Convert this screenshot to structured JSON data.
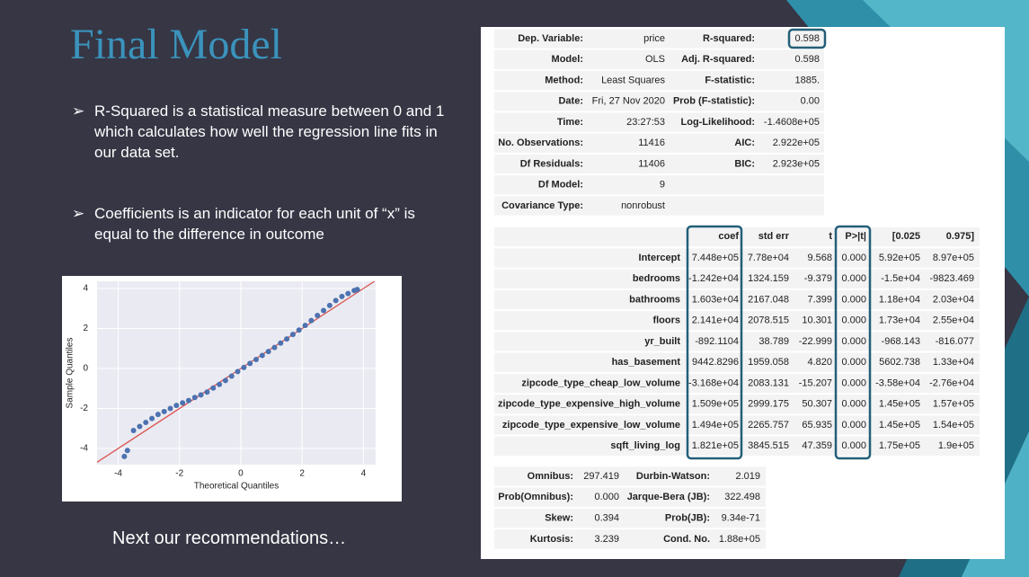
{
  "slide": {
    "title": "Final Model",
    "bullets": [
      "R-Squared is a statistical measure between 0 and 1 which calculates how well the regression line fits in our data set.",
      "Coefficients is an indicator for each unit of “x” is equal to the difference in outcome"
    ],
    "footer": "Next our recommendations…"
  },
  "qq_plot": {
    "type": "scatter",
    "x_label": "Theoretical Quantiles",
    "y_label": "Sample Quantiles",
    "xlim": [
      -4.69,
      4.4
    ],
    "ylim": [
      -4.81,
      4.36
    ],
    "xticks": [
      -4,
      -2,
      0,
      2,
      4
    ],
    "yticks": [
      -4,
      -2,
      0,
      2,
      4
    ],
    "grid": true,
    "color": "#4c72b0",
    "line_color": "#d9534f",
    "x": [
      -3.8,
      -3.7,
      -3.5,
      -3.3,
      -3.1,
      -2.9,
      -2.7,
      -2.5,
      -2.3,
      -2.1,
      -1.9,
      -1.7,
      -1.5,
      -1.3,
      -1.1,
      -0.9,
      -0.7,
      -0.5,
      -0.3,
      -0.1,
      0.1,
      0.3,
      0.5,
      0.7,
      0.9,
      1.1,
      1.3,
      1.5,
      1.7,
      1.9,
      2.1,
      2.3,
      2.5,
      2.7,
      2.9,
      3.1,
      3.3,
      3.5,
      3.7,
      3.8
    ],
    "y": [
      -4.4,
      -4.1,
      -3.1,
      -2.9,
      -2.7,
      -2.5,
      -2.3,
      -2.15,
      -2.0,
      -1.85,
      -1.72,
      -1.6,
      -1.45,
      -1.32,
      -1.18,
      -0.98,
      -0.8,
      -0.6,
      -0.38,
      -0.15,
      0.05,
      0.25,
      0.45,
      0.65,
      0.85,
      1.05,
      1.27,
      1.48,
      1.7,
      1.92,
      2.15,
      2.4,
      2.65,
      2.9,
      3.15,
      3.4,
      3.6,
      3.75,
      3.9,
      3.95
    ]
  },
  "summary": {
    "rows": [
      [
        "Dep. Variable:",
        "price",
        "R-squared:",
        "0.598"
      ],
      [
        "Model:",
        "OLS",
        "Adj. R-squared:",
        "0.598"
      ],
      [
        "Method:",
        "Least Squares",
        "F-statistic:",
        "1885."
      ],
      [
        "Date:",
        "Fri, 27 Nov 2020",
        "Prob (F-statistic):",
        "0.00"
      ],
      [
        "Time:",
        "23:27:53",
        "Log-Likelihood:",
        "-1.4608e+05"
      ],
      [
        "No. Observations:",
        "11416",
        "AIC:",
        "2.922e+05"
      ],
      [
        "Df Residuals:",
        "11406",
        "BIC:",
        "2.923e+05"
      ],
      [
        "Df Model:",
        "9"
      ],
      [
        "Covariance Type:",
        "nonrobust"
      ]
    ]
  },
  "coefficients": {
    "header": [
      "coef",
      "std err",
      "t",
      "P>|t|",
      "[0.025",
      "0.975]"
    ],
    "rows": [
      [
        "Intercept",
        "7.448e+05",
        "7.78e+04",
        "9.568",
        "0.000",
        "5.92e+05",
        "8.97e+05"
      ],
      [
        "bedrooms",
        "-1.242e+04",
        "1324.159",
        "-9.379",
        "0.000",
        "-1.5e+04",
        "-9823.469"
      ],
      [
        "bathrooms",
        "1.603e+04",
        "2167.048",
        "7.399",
        "0.000",
        "1.18e+04",
        "2.03e+04"
      ],
      [
        "floors",
        "2.141e+04",
        "2078.515",
        "10.301",
        "0.000",
        "1.73e+04",
        "2.55e+04"
      ],
      [
        "yr_built",
        "-892.1104",
        "38.789",
        "-22.999",
        "0.000",
        "-968.143",
        "-816.077"
      ],
      [
        "has_basement",
        "9442.8296",
        "1959.058",
        "4.820",
        "0.000",
        "5602.738",
        "1.33e+04"
      ],
      [
        "zipcode_type_cheap_low_volume",
        "-3.168e+04",
        "2083.131",
        "-15.207",
        "0.000",
        "-3.58e+04",
        "-2.76e+04"
      ],
      [
        "zipcode_type_expensive_high_volume",
        "1.509e+05",
        "2999.175",
        "50.307",
        "0.000",
        "1.45e+05",
        "1.57e+05"
      ],
      [
        "zipcode_type_expensive_low_volume",
        "1.494e+05",
        "2265.757",
        "65.935",
        "0.000",
        "1.45e+05",
        "1.54e+05"
      ],
      [
        "sqft_living_log",
        "1.821e+05",
        "3845.515",
        "47.359",
        "0.000",
        "1.75e+05",
        "1.9e+05"
      ]
    ]
  },
  "diagnostics": {
    "rows": [
      [
        "Omnibus:",
        "297.419",
        "Durbin-Watson:",
        "2.019"
      ],
      [
        "Prob(Omnibus):",
        "0.000",
        "Jarque-Bera (JB):",
        "322.498"
      ],
      [
        "Skew:",
        "0.394",
        "Prob(JB):",
        "9.34e-71"
      ],
      [
        "Kurtosis:",
        "3.239",
        "Cond. No.",
        "1.88e+05"
      ]
    ]
  }
}
